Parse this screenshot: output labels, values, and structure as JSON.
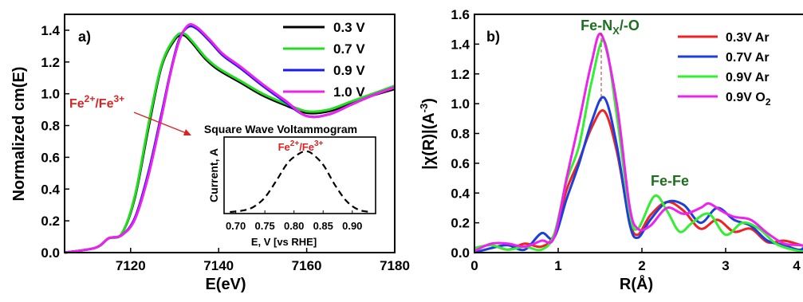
{
  "chart_data": [
    {
      "type": "line",
      "panel_label": "a)",
      "xlabel": "E(eV)",
      "ylabel": "Normalized cm(E)",
      "xlim": [
        7105,
        7180
      ],
      "ylim": [
        0.0,
        1.5
      ],
      "xticks": [
        7120,
        7140,
        7160,
        7180
      ],
      "yticks": [
        0.0,
        0.2,
        0.4,
        0.6,
        0.8,
        1.0,
        1.2,
        1.4
      ],
      "grid": false,
      "legend_position": "top-right",
      "series": [
        {
          "name": "0.3 V",
          "color": "#000000",
          "x": [
            7105,
            7112,
            7115,
            7118,
            7121,
            7124,
            7127,
            7130,
            7132,
            7134,
            7137,
            7140,
            7145,
            7150,
            7155,
            7160,
            7165,
            7170,
            7175,
            7180
          ],
          "y": [
            0.0,
            0.03,
            0.09,
            0.12,
            0.35,
            0.78,
            1.17,
            1.34,
            1.37,
            1.32,
            1.22,
            1.15,
            1.07,
            0.99,
            0.93,
            0.88,
            0.89,
            0.94,
            0.99,
            1.03
          ]
        },
        {
          "name": "0.7 V",
          "color": "#22dd22",
          "x": [
            7105,
            7112,
            7115,
            7118,
            7121,
            7124,
            7127,
            7130,
            7132,
            7134,
            7137,
            7140,
            7145,
            7150,
            7155,
            7160,
            7165,
            7170,
            7175,
            7180
          ],
          "y": [
            0.0,
            0.03,
            0.09,
            0.12,
            0.36,
            0.8,
            1.18,
            1.35,
            1.38,
            1.33,
            1.23,
            1.16,
            1.08,
            1.0,
            0.94,
            0.89,
            0.9,
            0.95,
            1.0,
            1.05
          ]
        },
        {
          "name": "0.9 V",
          "color": "#1a1aee",
          "x": [
            7105,
            7112,
            7115,
            7118,
            7121,
            7124,
            7127,
            7129,
            7131,
            7133,
            7135,
            7138,
            7141,
            7145,
            7150,
            7155,
            7160,
            7165,
            7170,
            7175,
            7180
          ],
          "y": [
            0.0,
            0.03,
            0.09,
            0.11,
            0.22,
            0.5,
            0.87,
            1.13,
            1.34,
            1.42,
            1.41,
            1.33,
            1.24,
            1.16,
            1.05,
            0.95,
            0.86,
            0.87,
            0.93,
            0.99,
            1.04
          ]
        },
        {
          "name": "1.0 V",
          "color": "#ee22ee",
          "x": [
            7105,
            7112,
            7115,
            7118,
            7121,
            7124,
            7127,
            7129,
            7131,
            7133,
            7135,
            7138,
            7141,
            7145,
            7150,
            7155,
            7160,
            7165,
            7170,
            7175,
            7180
          ],
          "y": [
            0.0,
            0.03,
            0.09,
            0.11,
            0.21,
            0.48,
            0.85,
            1.12,
            1.33,
            1.43,
            1.42,
            1.34,
            1.25,
            1.17,
            1.06,
            0.96,
            0.86,
            0.87,
            0.93,
            0.99,
            1.04
          ]
        }
      ],
      "annotation": {
        "text_main": "Fe",
        "sup1": "2+",
        "mid": "/Fe",
        "sup2": "3+"
      },
      "inset": {
        "title": "Square Wave Voltammogram",
        "xlabel": "E, V [vs RHE]",
        "ylabel": "Current, A",
        "xlim": [
          0.68,
          0.94
        ],
        "xticks": [
          0.7,
          0.75,
          0.8,
          0.85,
          0.9
        ],
        "xtick_labels": [
          "0.70",
          "0.75",
          "0.80",
          "0.85",
          "0.90"
        ],
        "annotation": {
          "text_main": "Fe",
          "sup1": "2+",
          "mid": "/Fe",
          "sup2": "3+"
        },
        "series": [
          {
            "color": "#000000",
            "x": [
              0.69,
              0.71,
              0.73,
              0.75,
              0.77,
              0.79,
              0.81,
              0.82,
              0.83,
              0.85,
              0.87,
              0.89,
              0.91,
              0.93
            ],
            "y": [
              0.0,
              0.02,
              0.08,
              0.24,
              0.52,
              0.82,
              0.97,
              1.0,
              0.97,
              0.78,
              0.45,
              0.18,
              0.04,
              0.0
            ]
          }
        ]
      }
    },
    {
      "type": "line",
      "panel_label": "b)",
      "xlabel": "R(Å)",
      "ylabel": "|χ(R)|(A-3)",
      "ylabel_parts": {
        "pre": "|",
        "chi": "χ",
        "mid": "(R)|(A",
        "sup": "-3",
        "post": ")"
      },
      "xlim": [
        0,
        4
      ],
      "ylim": [
        0.0,
        1.6
      ],
      "xticks": [
        0,
        1,
        2,
        3,
        4
      ],
      "yticks": [
        0.0,
        0.2,
        0.4,
        0.6,
        0.8,
        1.0,
        1.2,
        1.4,
        1.6
      ],
      "grid": false,
      "legend_position": "top-right",
      "peak_labels": [
        {
          "text": "Fe-N",
          "sub": "X",
          "post": "/-O",
          "color": "#1f6e1f"
        },
        {
          "text": "Fe-Fe",
          "color": "#1f6e1f"
        }
      ],
      "series": [
        {
          "name": "0.3V Ar",
          "color": "#ee2222",
          "x": [
            0,
            0.2,
            0.4,
            0.6,
            0.8,
            0.95,
            1.1,
            1.25,
            1.4,
            1.55,
            1.7,
            1.85,
            1.95,
            2.1,
            2.3,
            2.5,
            2.7,
            2.9,
            3.1,
            3.3,
            3.5,
            3.7,
            3.9,
            4.0
          ],
          "y": [
            0.03,
            0.05,
            0.02,
            0.06,
            0.04,
            0.12,
            0.42,
            0.62,
            0.84,
            0.95,
            0.68,
            0.22,
            0.12,
            0.25,
            0.34,
            0.28,
            0.16,
            0.22,
            0.14,
            0.16,
            0.07,
            0.08,
            0.05,
            0.04
          ]
        },
        {
          "name": "0.7V Ar",
          "color": "#1a3fdd",
          "x": [
            0,
            0.2,
            0.4,
            0.6,
            0.8,
            0.95,
            1.1,
            1.25,
            1.4,
            1.55,
            1.7,
            1.85,
            1.95,
            2.1,
            2.3,
            2.5,
            2.7,
            2.9,
            3.1,
            3.3,
            3.5,
            3.7,
            3.9,
            4.0
          ],
          "y": [
            0.0,
            0.03,
            0.05,
            0.02,
            0.13,
            0.1,
            0.36,
            0.6,
            0.88,
            1.04,
            0.72,
            0.2,
            0.1,
            0.22,
            0.34,
            0.32,
            0.2,
            0.3,
            0.22,
            0.18,
            0.08,
            0.05,
            0.02,
            0.1
          ]
        },
        {
          "name": "0.9V Ar",
          "color": "#33ee33",
          "x": [
            0,
            0.2,
            0.4,
            0.6,
            0.8,
            0.95,
            1.1,
            1.25,
            1.4,
            1.55,
            1.7,
            1.85,
            1.95,
            2.15,
            2.3,
            2.45,
            2.6,
            2.8,
            3.0,
            3.2,
            3.4,
            3.6,
            3.8,
            4.0
          ],
          "y": [
            0.03,
            0.05,
            0.02,
            0.04,
            0.02,
            0.12,
            0.48,
            0.72,
            1.15,
            1.42,
            0.92,
            0.28,
            0.16,
            0.38,
            0.28,
            0.14,
            0.2,
            0.26,
            0.12,
            0.2,
            0.16,
            0.06,
            0.02,
            0.0
          ]
        },
        {
          "name": "0.9V O2",
          "name_parts": {
            "pre": "0.9V O",
            "sub": "2"
          },
          "color": "#ee22ee",
          "x": [
            0,
            0.2,
            0.4,
            0.6,
            0.8,
            0.95,
            1.1,
            1.25,
            1.4,
            1.52,
            1.7,
            1.85,
            1.95,
            2.1,
            2.3,
            2.5,
            2.7,
            2.8,
            2.95,
            3.1,
            3.3,
            3.5,
            3.7,
            3.9,
            4.0
          ],
          "y": [
            0.01,
            0.06,
            0.06,
            0.04,
            0.08,
            0.1,
            0.5,
            0.88,
            1.28,
            1.46,
            1.0,
            0.32,
            0.16,
            0.18,
            0.3,
            0.26,
            0.3,
            0.33,
            0.28,
            0.24,
            0.22,
            0.13,
            0.06,
            0.05,
            0.03
          ]
        }
      ]
    }
  ]
}
